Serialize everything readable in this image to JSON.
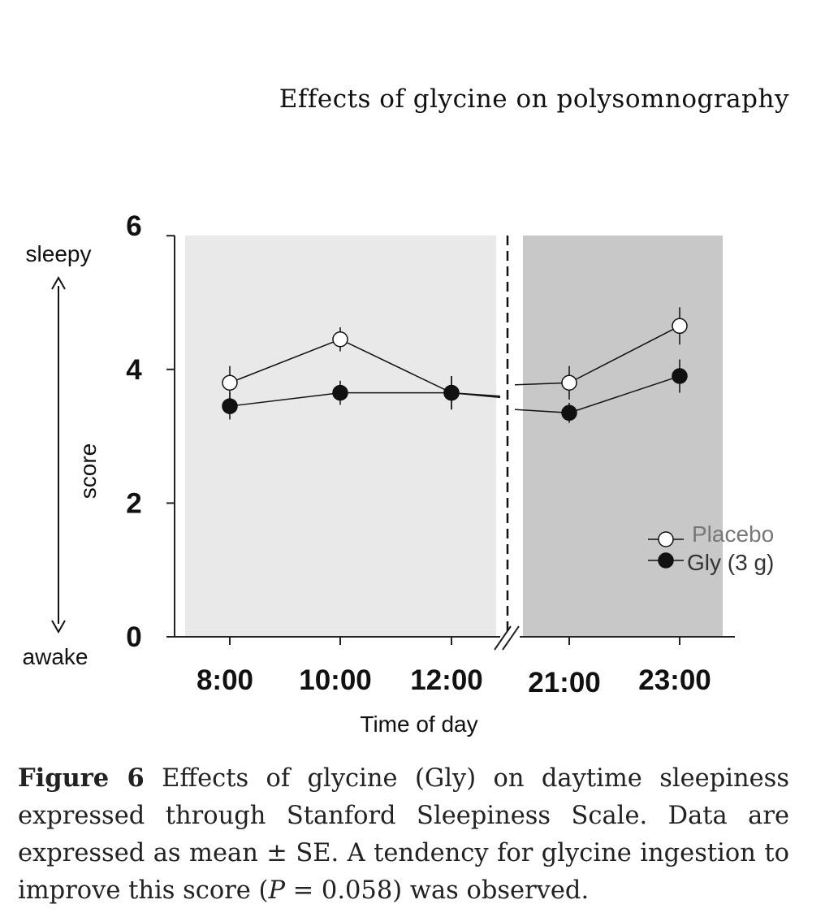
{
  "header": {
    "title": "Effects of glycine on polysomnography"
  },
  "chart_data": {
    "type": "line",
    "categories": [
      "8:00",
      "10:00",
      "12:00",
      "21:00",
      "23:00"
    ],
    "xlabel": "Time of day",
    "ylabel": "score",
    "ylim": [
      0,
      6
    ],
    "yticks": [
      "0",
      "2",
      "4",
      "6"
    ],
    "arrow_top_label": "sleepy",
    "arrow_bottom_label": "awake",
    "axis_break": "between 12:00 and 21:00",
    "shading": {
      "day": "#e9e9e9",
      "night": "#c8c8c8"
    },
    "series": [
      {
        "name": "Placebo",
        "marker": "open-circle",
        "values": [
          3.8,
          4.45,
          3.65,
          3.8,
          4.65
        ],
        "se": [
          0.25,
          0.18,
          0.25,
          0.25,
          0.28
        ]
      },
      {
        "name": "Gly (3 g)",
        "marker": "filled-circle",
        "values": [
          3.45,
          3.65,
          3.65,
          3.35,
          3.9
        ],
        "se": [
          0.2,
          0.18,
          0.25,
          0.15,
          0.25
        ]
      }
    ]
  },
  "caption": {
    "label": "Figure 6",
    "text": "Effects of glycine (Gly) on daytime sleepiness expressed through Stanford Sleepiness Scale. Data are expressed as mean ± SE. A tendency for glycine ingestion to improve this score (",
    "p_symbol": "P",
    "p_rest": " = 0.058) was observed."
  }
}
